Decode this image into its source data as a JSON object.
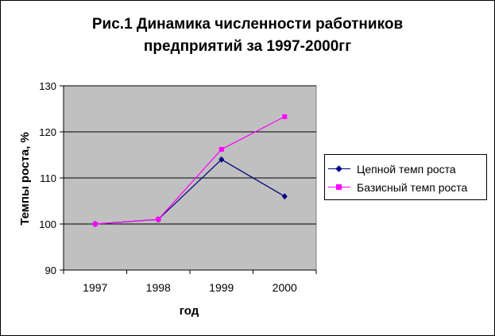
{
  "chart_data": {
    "type": "line",
    "title_line1": "Рис.1 Динамика численности работников",
    "title_line2": "предприятий за 1997-2000гг",
    "xlabel": "год",
    "ylabel": "Темпы роста, %",
    "categories": [
      "1997",
      "1998",
      "1999",
      "2000"
    ],
    "ylim": [
      90,
      130
    ],
    "yticks": [
      90,
      100,
      110,
      120,
      130
    ],
    "grid": true,
    "legend_position": "right",
    "plot_background": "#c0c0c0",
    "series": [
      {
        "name": "Цепной темп роста",
        "values": [
          100,
          101,
          114,
          106
        ],
        "color": "#000080",
        "marker": "diamond"
      },
      {
        "name": "Базисный темп роста",
        "values": [
          100,
          101,
          116.2,
          123.3
        ],
        "color": "#ff00ff",
        "marker": "square"
      }
    ]
  }
}
